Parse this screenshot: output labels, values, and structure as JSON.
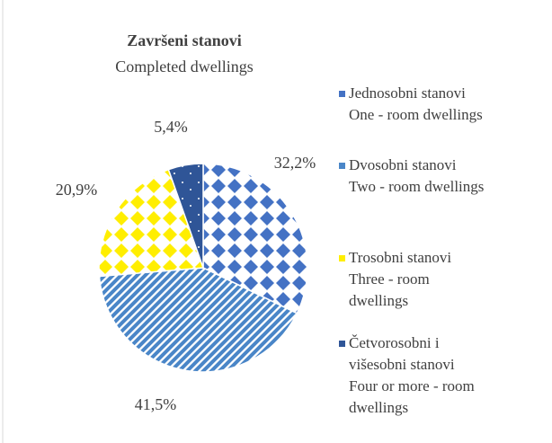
{
  "chart_data": {
    "type": "pie",
    "title": "Završeni stanovi",
    "subtitle": "Completed dwellings",
    "categories": [
      "Jednosobni stanovi\nOne - room dwellings",
      "Dvosobni stanovi\nTwo - room dwellings",
      "Trosobni stanovi\nThree - room\ndwellings",
      "Četvorosobni i\nvišesobni stanovi\nFour or more - room\ndwellings"
    ],
    "values": [
      32.2,
      41.5,
      20.9,
      5.4
    ],
    "value_labels": [
      "32,2%",
      "41,5%",
      "20,9%",
      "5,4%"
    ],
    "colors": [
      "#4472c4",
      "#4a86c8",
      "#ffee00",
      "#2f5597"
    ],
    "legend": "right"
  }
}
